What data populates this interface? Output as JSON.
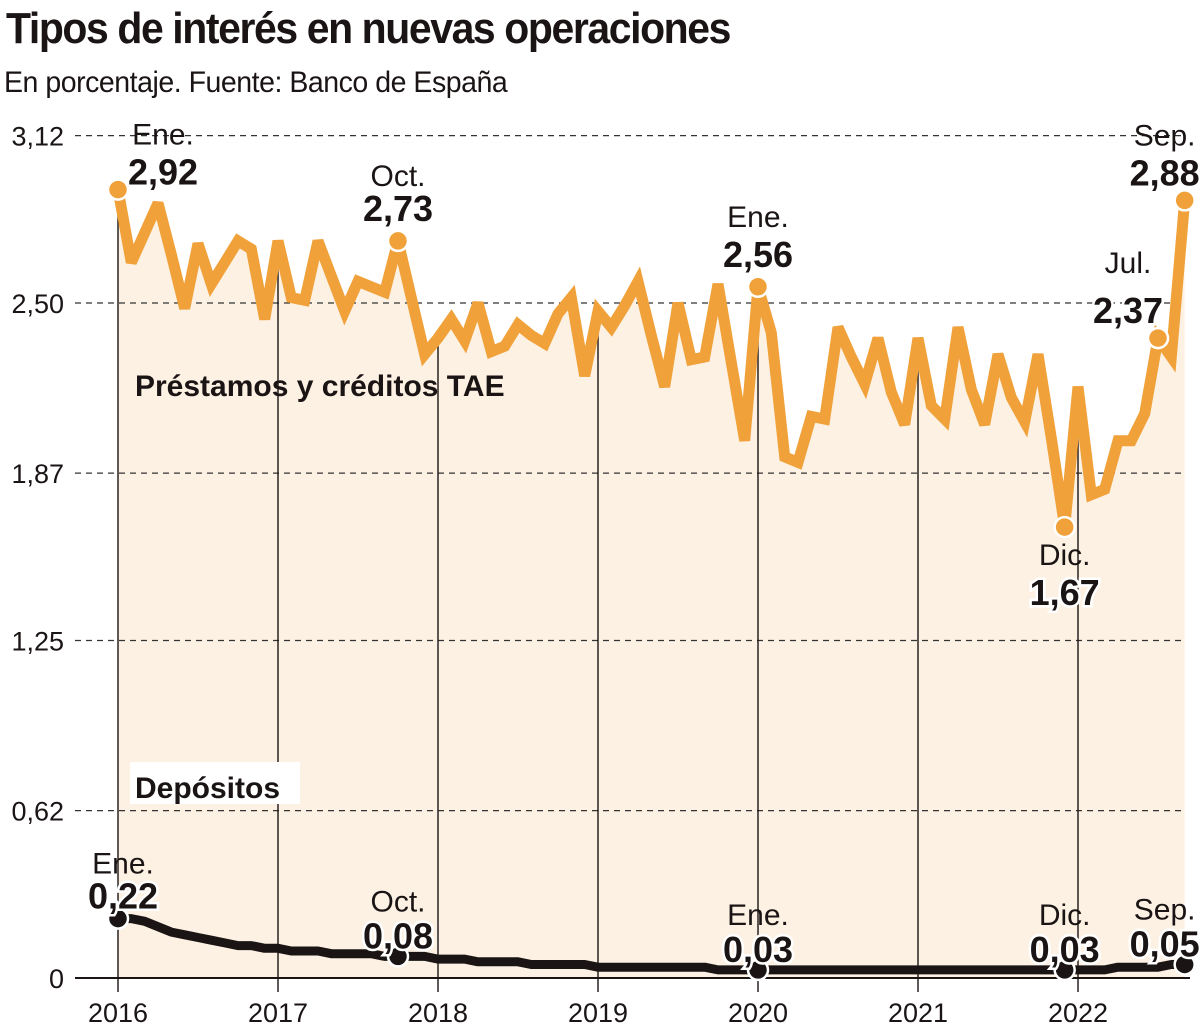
{
  "title": "Tipos de interés en nuevas operaciones",
  "subtitle": "En porcentaje. Fuente: Banco de España",
  "chart_data": {
    "type": "line",
    "title": "Tipos de interés en nuevas operaciones",
    "subtitle": "En porcentaje. Fuente: Banco de España",
    "x_start": "2016-01",
    "x_frequency": "monthly",
    "x_ticks": [
      "2016",
      "2017",
      "2018",
      "2019",
      "2020",
      "2021",
      "2022"
    ],
    "y_ticks": [
      "3,12",
      "2,50",
      "1,87",
      "1,25",
      "0,62",
      "0"
    ],
    "y_tick_values": [
      3.12,
      2.5,
      1.87,
      1.25,
      0.62,
      0
    ],
    "ylim": [
      0,
      3.12
    ],
    "grid": "horizontal dashed",
    "series": [
      {
        "name": "Préstamos y créditos TAE",
        "color": "#f0a13a",
        "fill": "#fdf1e3",
        "values": [
          2.92,
          2.65,
          2.76,
          2.87,
          2.68,
          2.48,
          2.72,
          2.57,
          2.65,
          2.73,
          2.7,
          2.44,
          2.73,
          2.52,
          2.51,
          2.73,
          2.6,
          2.47,
          2.58,
          2.56,
          2.54,
          2.73,
          2.52,
          2.31,
          2.37,
          2.44,
          2.36,
          2.5,
          2.32,
          2.34,
          2.42,
          2.38,
          2.35,
          2.46,
          2.52,
          2.23,
          2.47,
          2.41,
          2.49,
          2.58,
          2.38,
          2.19,
          2.5,
          2.29,
          2.3,
          2.57,
          2.28,
          1.99,
          2.56,
          2.39,
          1.93,
          1.91,
          2.08,
          2.07,
          2.41,
          2.3,
          2.2,
          2.37,
          2.17,
          2.05,
          2.37,
          2.12,
          2.07,
          2.41,
          2.18,
          2.05,
          2.31,
          2.15,
          2.06,
          2.31,
          2.0,
          1.67,
          2.19,
          1.79,
          1.81,
          1.99,
          1.99,
          2.09,
          2.37,
          2.3,
          2.88
        ]
      },
      {
        "name": "Depósitos",
        "color": "#1a1414",
        "values": [
          0.22,
          0.22,
          0.21,
          0.19,
          0.17,
          0.16,
          0.15,
          0.14,
          0.13,
          0.12,
          0.12,
          0.11,
          0.11,
          0.1,
          0.1,
          0.1,
          0.09,
          0.09,
          0.09,
          0.09,
          0.08,
          0.08,
          0.08,
          0.08,
          0.07,
          0.07,
          0.07,
          0.06,
          0.06,
          0.06,
          0.06,
          0.05,
          0.05,
          0.05,
          0.05,
          0.05,
          0.04,
          0.04,
          0.04,
          0.04,
          0.04,
          0.04,
          0.04,
          0.04,
          0.04,
          0.03,
          0.03,
          0.03,
          0.03,
          0.03,
          0.03,
          0.03,
          0.03,
          0.03,
          0.03,
          0.03,
          0.03,
          0.03,
          0.03,
          0.03,
          0.03,
          0.03,
          0.03,
          0.03,
          0.03,
          0.03,
          0.03,
          0.03,
          0.03,
          0.03,
          0.03,
          0.03,
          0.03,
          0.03,
          0.03,
          0.04,
          0.04,
          0.04,
          0.04,
          0.05,
          0.05
        ]
      }
    ],
    "annotations": [
      {
        "series": 0,
        "index": 0,
        "month": "Ene.",
        "value": "2,92"
      },
      {
        "series": 0,
        "index": 21,
        "month": "Oct.",
        "value": "2,73"
      },
      {
        "series": 0,
        "index": 48,
        "month": "Ene.",
        "value": "2,56"
      },
      {
        "series": 0,
        "index": 71,
        "month": "Dic.",
        "value": "1,67"
      },
      {
        "series": 0,
        "index": 78,
        "month": "Jul.",
        "value": "2,37"
      },
      {
        "series": 0,
        "index": 80,
        "month": "Sep.",
        "value": "2,88"
      },
      {
        "series": 1,
        "index": 0,
        "month": "Ene.",
        "value": "0,22"
      },
      {
        "series": 1,
        "index": 21,
        "month": "Oct.",
        "value": "0,08"
      },
      {
        "series": 1,
        "index": 48,
        "month": "Ene.",
        "value": "0,03"
      },
      {
        "series": 1,
        "index": 71,
        "month": "Dic.",
        "value": "0,03"
      },
      {
        "series": 1,
        "index": 80,
        "month": "Sep.",
        "value": "0,05"
      }
    ]
  }
}
